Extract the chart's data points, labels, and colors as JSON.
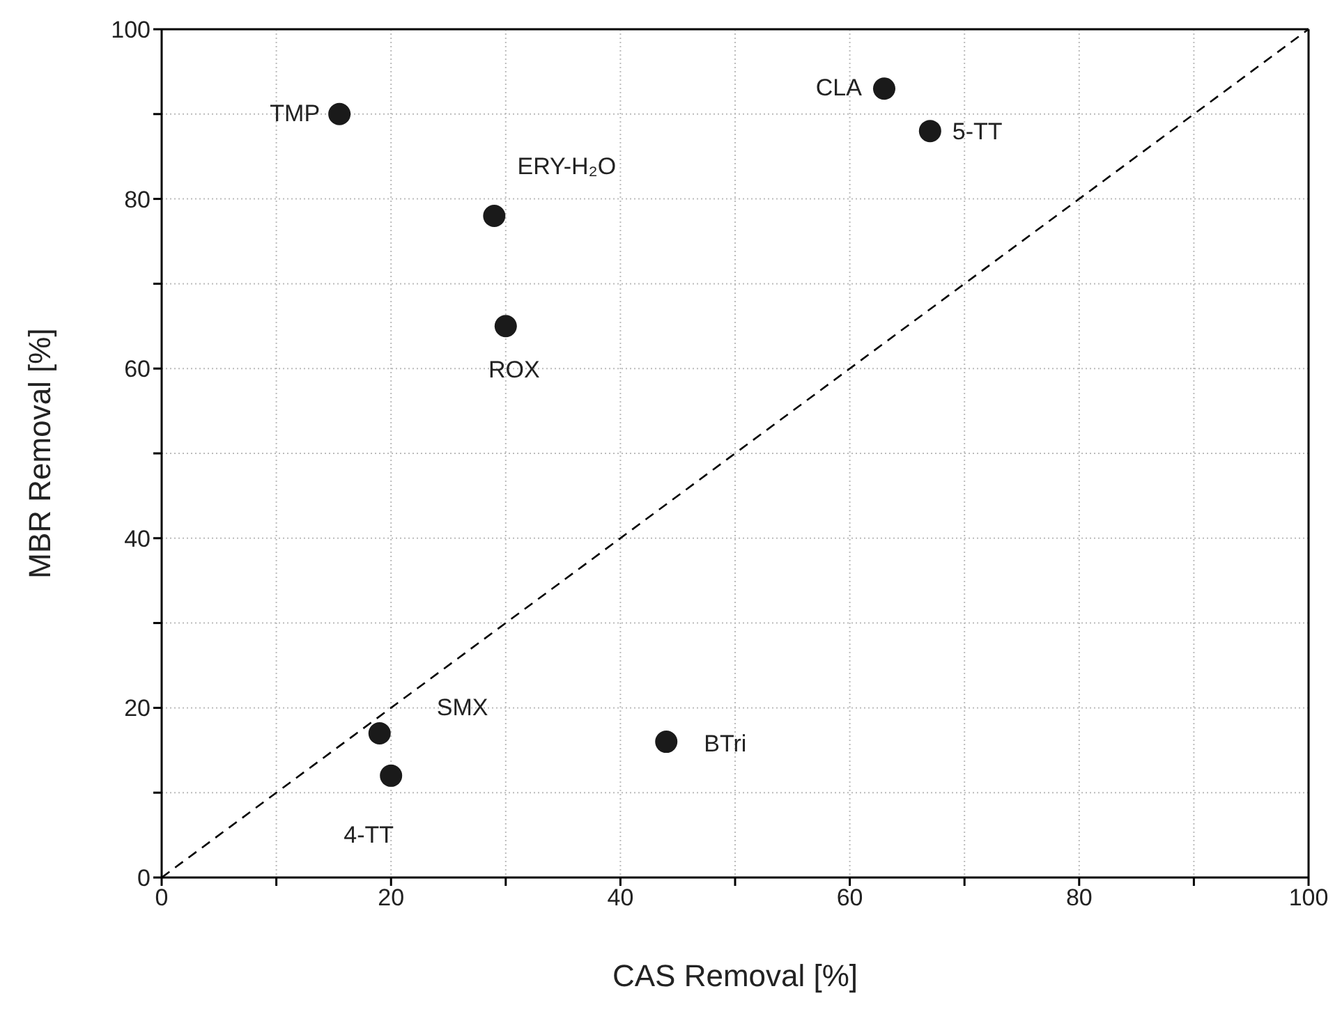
{
  "chart_data": {
    "type": "scatter",
    "xlabel": "CAS Removal [%]",
    "ylabel": "MBR Removal [%]",
    "xlim": [
      0,
      100
    ],
    "ylim": [
      0,
      100
    ],
    "xticks": [
      0,
      {
        "value": 10,
        "label": null
      },
      20,
      {
        "value": 30,
        "label": null
      },
      40,
      {
        "value": 50,
        "label": null
      },
      60,
      {
        "value": 70,
        "label": null
      },
      80,
      {
        "value": 90,
        "label": null
      },
      100
    ],
    "yticks": [
      0,
      {
        "value": 10,
        "label": null
      },
      20,
      {
        "value": 30,
        "label": null
      },
      40,
      {
        "value": 50,
        "label": null
      },
      60,
      {
        "value": 70,
        "label": null
      },
      80,
      {
        "value": 90,
        "label": null
      },
      100
    ],
    "grid": true,
    "marker": "circle",
    "series": [
      {
        "color": "#1a1a1a",
        "x": [
          15.5,
          29,
          30,
          63,
          67,
          44,
          19,
          20
        ],
        "values": [
          90,
          78,
          65,
          93,
          88,
          16,
          17,
          12
        ]
      },
      {
        "type": "line",
        "color": "#000000",
        "line_style": "dashed",
        "marker": "none",
        "x": [
          0,
          100
        ],
        "values": [
          0,
          100
        ]
      }
    ],
    "annotations": [
      {
        "text": "TMP",
        "x": 15.5,
        "y": 90
      },
      {
        "text": "ERY-H₂O",
        "x": 29,
        "y": 78
      },
      {
        "text": "ROX",
        "x": 30,
        "y": 65
      },
      {
        "text": "CLA",
        "x": 63,
        "y": 93
      },
      {
        "text": "5-TT",
        "x": 67,
        "y": 88
      },
      {
        "text": "BTri",
        "x": 44,
        "y": 16
      },
      {
        "text": "SMX",
        "x": 19,
        "y": 17
      },
      {
        "text": "4-TT",
        "x": 20,
        "y": 12
      }
    ]
  }
}
